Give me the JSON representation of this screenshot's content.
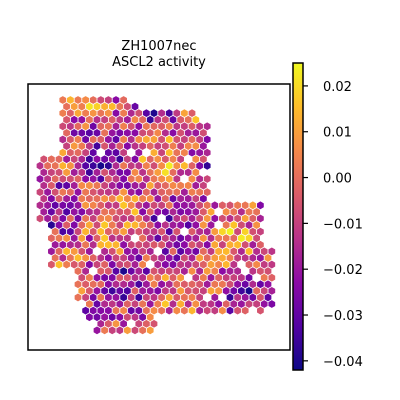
{
  "chart_data": {
    "type": "heatmap",
    "subtype": "spatial-hex-scatter",
    "title_lines": [
      "ZH1007nec",
      "ASCL2 activity"
    ],
    "xlabel": "",
    "ylabel": "",
    "axes_ticks_visible": false,
    "grid": false,
    "colormap": "plasma",
    "colormap_stops": [
      "#0d0887",
      "#5302a3",
      "#8b0aa5",
      "#b83289",
      "#db5c68",
      "#f48849",
      "#febd2a",
      "#f0f921"
    ],
    "colorbar": {
      "location": "right",
      "vmin": -0.042,
      "vmax": 0.025,
      "ticks": [
        0.02,
        0.01,
        0.0,
        -0.01,
        -0.02,
        -0.03,
        -0.04
      ],
      "tick_labels": [
        "0.02",
        "0.01",
        "0.00",
        "−0.01",
        "−0.02",
        "−0.03",
        "−0.04"
      ]
    },
    "value_range_observed": [
      -0.042,
      0.025
    ],
    "tissue_region_description": "Hexagonal spots forming an irregular tissue section: a large upper-left lobe joined to a lower-right lobe"
  }
}
